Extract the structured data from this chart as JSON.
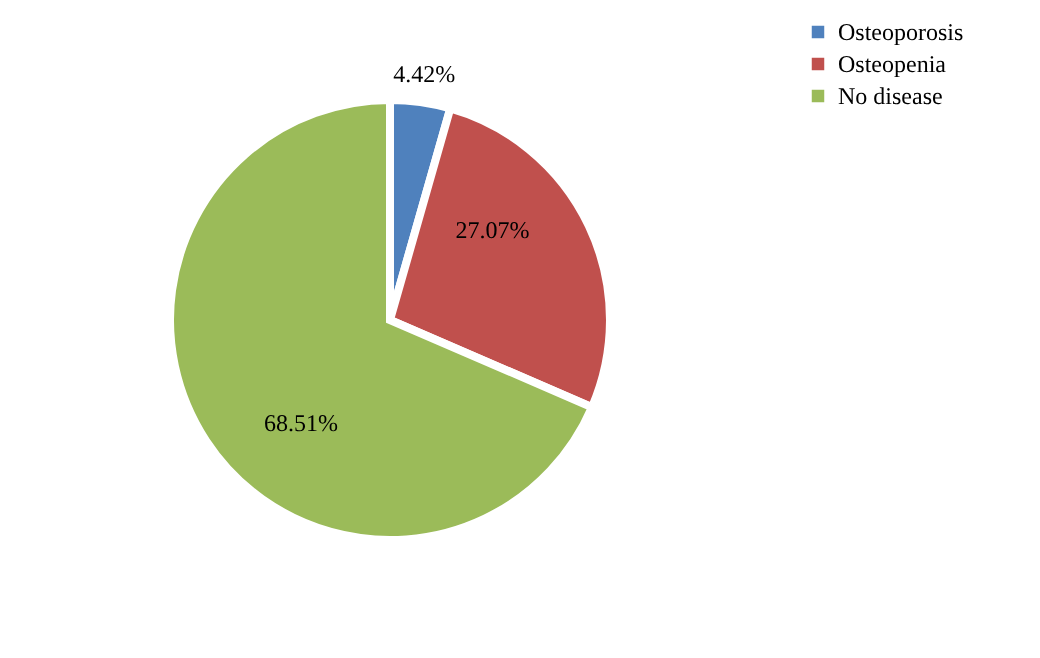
{
  "chart_data": {
    "type": "pie",
    "categories": [
      "Osteoporosis",
      "Osteopenia",
      "No disease"
    ],
    "values": [
      4.42,
      27.07,
      68.51
    ],
    "colors": [
      "#4f81bd",
      "#c0504d",
      "#9bbb59"
    ],
    "value_labels": [
      "4.42%",
      "27.07%",
      "68.51%"
    ],
    "legend": "right"
  }
}
